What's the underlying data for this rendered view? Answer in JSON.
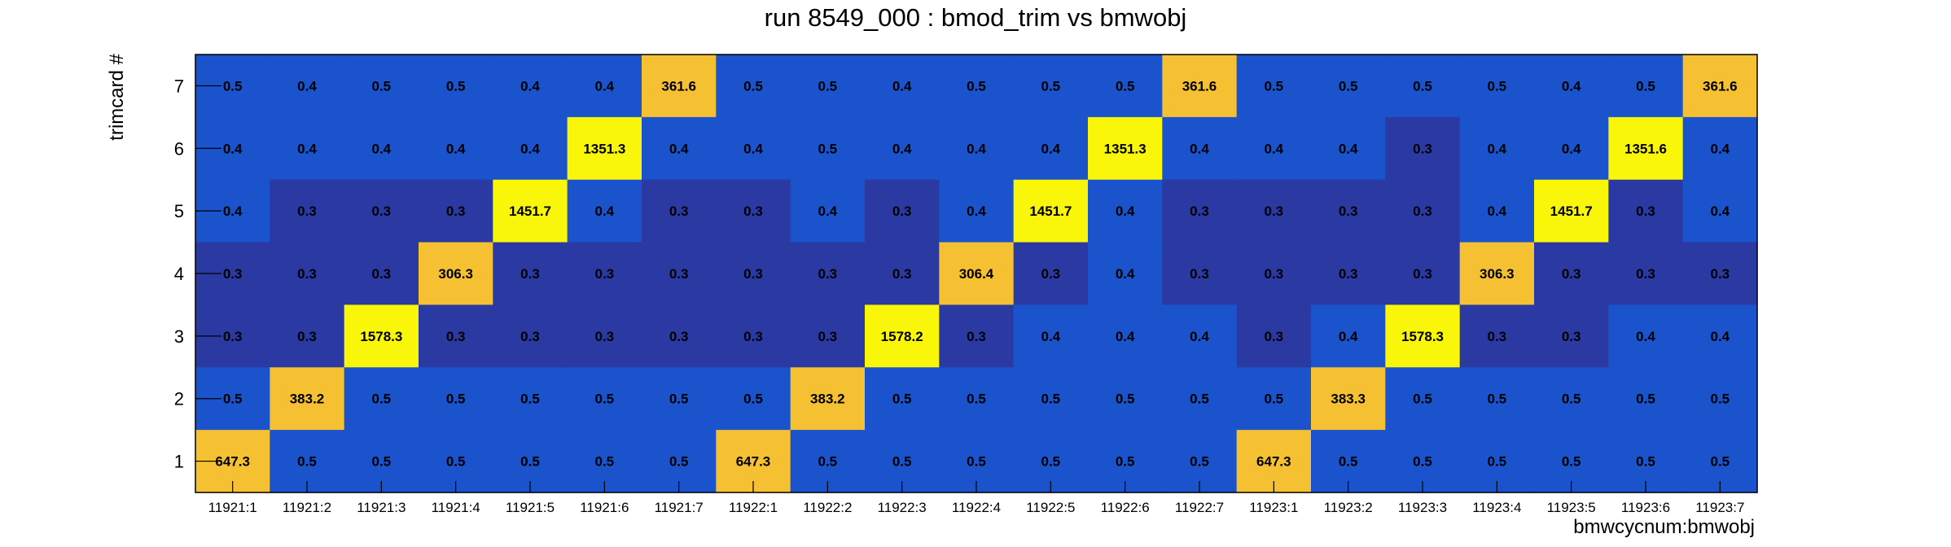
{
  "chart_data": {
    "type": "heatmap",
    "title": "run 8549_000 : bmod_trim vs bmwobj",
    "xlabel": "bmwcycnum:bmwobj",
    "ylabel": "trimcard #",
    "x_categories": [
      "11921:1",
      "11921:2",
      "11921:3",
      "11921:4",
      "11921:5",
      "11921:6",
      "11921:7",
      "11922:1",
      "11922:2",
      "11922:3",
      "11922:4",
      "11922:5",
      "11922:6",
      "11922:7",
      "11923:1",
      "11923:2",
      "11923:3",
      "11923:4",
      "11923:5",
      "11923:6",
      "11923:7"
    ],
    "y_categories": [
      "1",
      "2",
      "3",
      "4",
      "5",
      "6",
      "7"
    ],
    "grid": false,
    "color_scale": {
      "low": "#2b3aa3",
      "mid": "#1a53cc",
      "high_mid": "#f5c031",
      "high": "#faf60a"
    },
    "rows": [
      {
        "y": "7",
        "values": [
          "0.5",
          "0.4",
          "0.5",
          "0.5",
          "0.4",
          "0.4",
          "361.6",
          "0.5",
          "0.5",
          "0.4",
          "0.5",
          "0.5",
          "0.5",
          "361.6",
          "0.5",
          "0.5",
          "0.5",
          "0.5",
          "0.4",
          "0.5",
          "361.6"
        ]
      },
      {
        "y": "6",
        "values": [
          "0.4",
          "0.4",
          "0.4",
          "0.4",
          "0.4",
          "1351.3",
          "0.4",
          "0.4",
          "0.5",
          "0.4",
          "0.4",
          "0.4",
          "1351.3",
          "0.4",
          "0.4",
          "0.4",
          "0.3",
          "0.4",
          "0.4",
          "1351.6",
          "0.4"
        ]
      },
      {
        "y": "5",
        "values": [
          "0.4",
          "0.3",
          "0.3",
          "0.3",
          "1451.7",
          "0.4",
          "0.3",
          "0.3",
          "0.4",
          "0.3",
          "0.4",
          "1451.7",
          "0.4",
          "0.3",
          "0.3",
          "0.3",
          "0.3",
          "0.4",
          "1451.7",
          "0.3",
          "0.4"
        ]
      },
      {
        "y": "4",
        "values": [
          "0.3",
          "0.3",
          "0.3",
          "306.3",
          "0.3",
          "0.3",
          "0.3",
          "0.3",
          "0.3",
          "0.3",
          "306.4",
          "0.3",
          "0.4",
          "0.3",
          "0.3",
          "0.3",
          "0.3",
          "306.3",
          "0.3",
          "0.3",
          "0.3"
        ]
      },
      {
        "y": "3",
        "values": [
          "0.3",
          "0.3",
          "1578.3",
          "0.3",
          "0.3",
          "0.3",
          "0.3",
          "0.3",
          "0.3",
          "1578.2",
          "0.3",
          "0.4",
          "0.4",
          "0.4",
          "0.3",
          "0.4",
          "1578.3",
          "0.3",
          "0.3",
          "0.4",
          "0.4"
        ]
      },
      {
        "y": "2",
        "values": [
          "0.5",
          "383.2",
          "0.5",
          "0.5",
          "0.5",
          "0.5",
          "0.5",
          "0.5",
          "383.2",
          "0.5",
          "0.5",
          "0.5",
          "0.5",
          "0.5",
          "0.5",
          "383.3",
          "0.5",
          "0.5",
          "0.5",
          "0.5",
          "0.5"
        ]
      },
      {
        "y": "1",
        "values": [
          "647.3",
          "0.5",
          "0.5",
          "0.5",
          "0.5",
          "0.5",
          "0.5",
          "647.3",
          "0.5",
          "0.5",
          "0.5",
          "0.5",
          "0.5",
          "0.5",
          "647.3",
          "0.5",
          "0.5",
          "0.5",
          "0.5",
          "0.5",
          "0.5"
        ]
      }
    ]
  }
}
